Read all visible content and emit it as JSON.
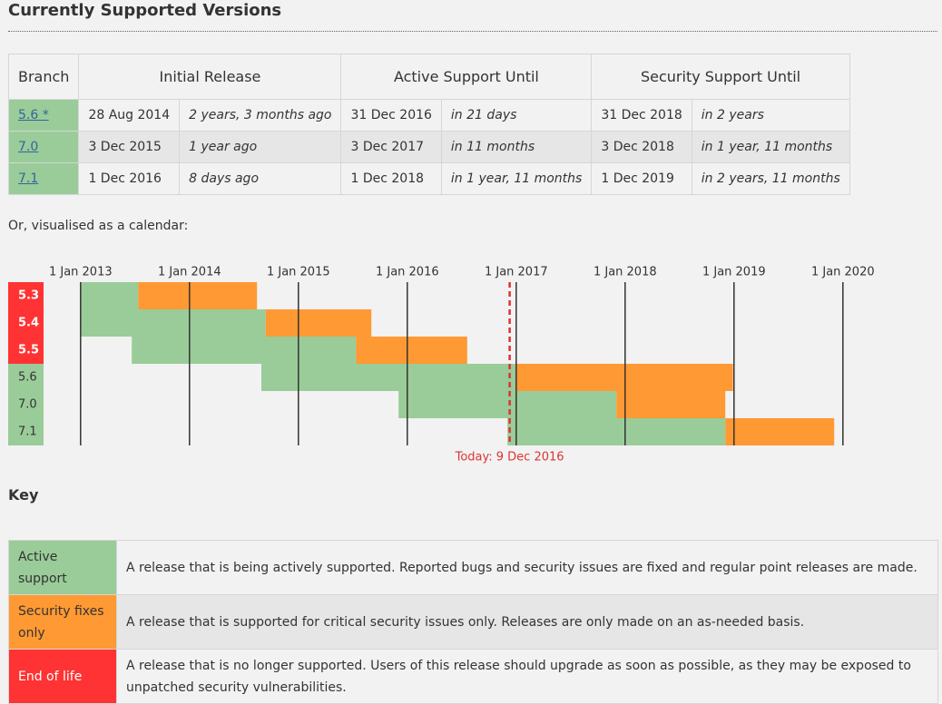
{
  "heading": "Currently Supported Versions",
  "table": {
    "headers": [
      "Branch",
      "Initial Release",
      "Active Support Until",
      "Security Support Until"
    ],
    "rows": [
      [
        "5.6 *",
        "28 Aug 2014",
        "2 years, 3 months ago",
        "31 Dec 2016",
        "in 21 days",
        "31 Dec 2018",
        "in 2 years"
      ],
      [
        "7.0",
        "3 Dec 2015",
        "1 year ago",
        "3 Dec 2017",
        "in 11 months",
        "3 Dec 2018",
        "in 1 year, 11 months"
      ],
      [
        "7.1",
        "1 Dec 2016",
        "8 days ago",
        "1 Dec 2018",
        "in 1 year, 11 months",
        "1 Dec 2019",
        "in 2 years, 11 months"
      ]
    ]
  },
  "calendar_intro": "Or, visualised as a calendar:",
  "calendar": {
    "xlim": [
      2012.66,
      2020.91
    ],
    "xticks": [
      {
        "value": 2013,
        "label": "1 Jan 2013"
      },
      {
        "value": 2014,
        "label": "1 Jan 2014"
      },
      {
        "value": 2015,
        "label": "1 Jan 2015"
      },
      {
        "value": 2016,
        "label": "1 Jan 2016"
      },
      {
        "value": 2017,
        "label": "1 Jan 2017"
      },
      {
        "value": 2018,
        "label": "1 Jan 2018"
      },
      {
        "value": 2019,
        "label": "1 Jan 2019"
      },
      {
        "value": 2020,
        "label": "1 Jan 2020"
      }
    ],
    "active_color": "#99cc99",
    "security_color": "#ff9933",
    "rows": [
      {
        "branch": "5.3",
        "color": "#ff3333",
        "start": 2013,
        "active_end": 2013.53,
        "security_end": 2014.62
      },
      {
        "branch": "5.4",
        "color": "#ff3333",
        "start": 2013,
        "active_end": 2014.7,
        "security_end": 2015.67
      },
      {
        "branch": "5.5",
        "color": "#ff3333",
        "start": 2013.47,
        "active_end": 2015.53,
        "security_end": 2016.55
      },
      {
        "branch": "5.6",
        "color": "#99cc99",
        "start": 2014.66,
        "active_end": 2017.0,
        "security_end": 2018.99
      },
      {
        "branch": "7.0",
        "color": "#99cc99",
        "start": 2015.92,
        "active_end": 2017.92,
        "security_end": 2018.92
      },
      {
        "branch": "7.1",
        "color": "#99cc99",
        "start": 2016.92,
        "active_end": 2018.92,
        "security_end": 2019.92
      }
    ],
    "today": {
      "value": 2016.94,
      "label": "Today: 9 Dec 2016"
    }
  },
  "key": {
    "title": "Key",
    "rows": [
      [
        "Active support",
        "A release that is being actively supported. Reported bugs and security issues are fixed and regular point releases are made."
      ],
      [
        "Security fixes only",
        "A release that is supported for critical security issues only. Releases are only made on an as-needed basis."
      ],
      [
        "End of life",
        "A release that is no longer supported. Users of this release should upgrade as soon as possible, as they may be exposed to unpatched security vulnerabilities."
      ]
    ]
  }
}
